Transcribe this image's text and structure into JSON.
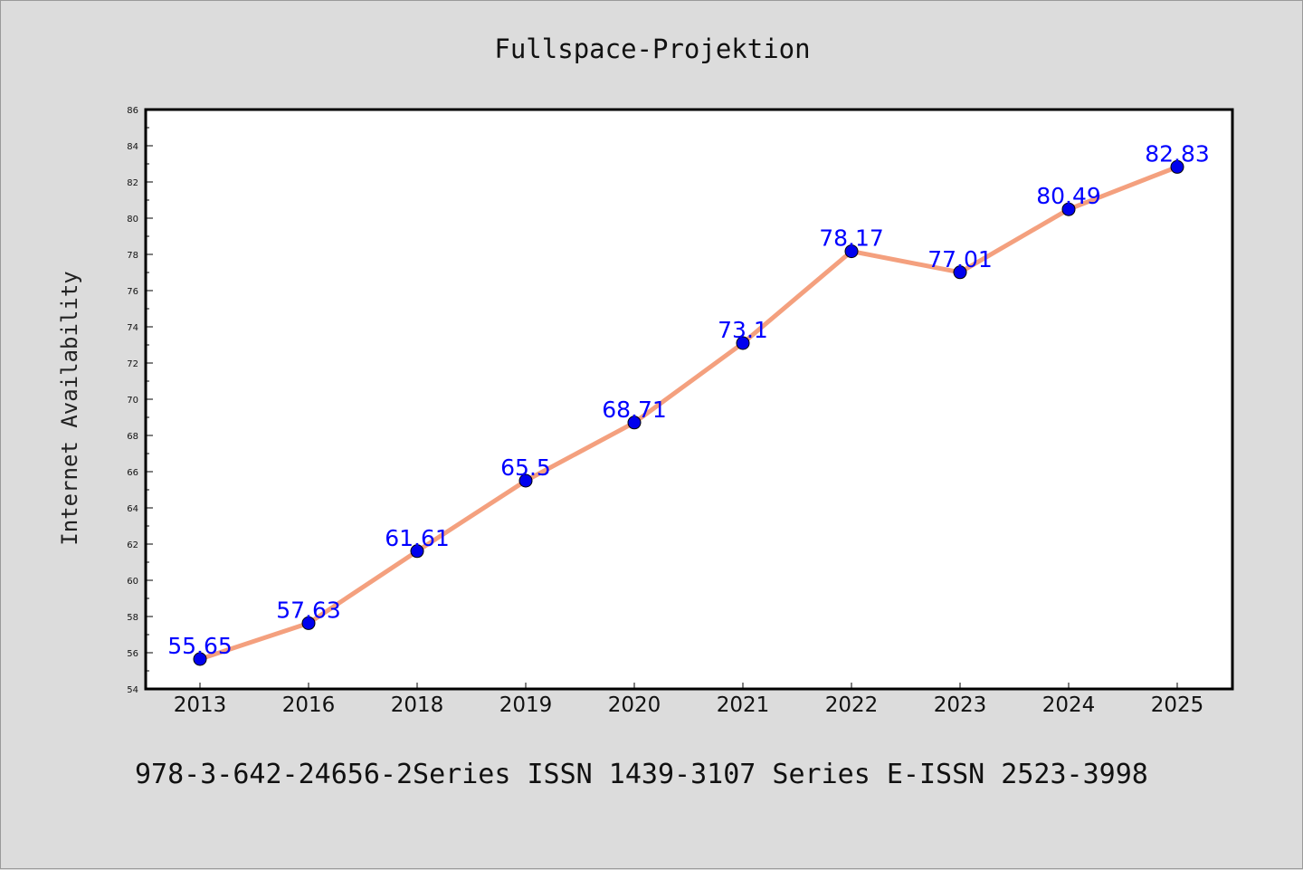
{
  "chart_data": {
    "type": "line",
    "title": "Fullspace-Projektion",
    "xlabel": "",
    "ylabel": "Internet Availability",
    "categories": [
      "2013",
      "2016",
      "2018",
      "2019",
      "2020",
      "2021",
      "2022",
      "2023",
      "2024",
      "2025"
    ],
    "series": [
      {
        "values": [
          55.65,
          57.63,
          61.61,
          65.5,
          68.71,
          73.1,
          78.17,
          77.01,
          80.49,
          82.83
        ],
        "labels": [
          "55.65",
          "57.63",
          "61.61",
          "65.5",
          "68.71",
          "73.1",
          "78.17",
          "77.01",
          "80.49",
          "82.83"
        ],
        "line_color": "#f4a07e",
        "marker_color": "#0000ee"
      }
    ],
    "ylim": [
      54,
      86
    ],
    "yticks": [
      "54",
      "56",
      "58",
      "60",
      "62",
      "64",
      "66",
      "68",
      "70",
      "72",
      "74",
      "76",
      "78",
      "80",
      "82",
      "84",
      "86"
    ],
    "grid": false,
    "legend": "none"
  },
  "footer_text": "978-3-642-24656-2Series ISSN 1439-3107 Series E-ISSN 2523-3998"
}
